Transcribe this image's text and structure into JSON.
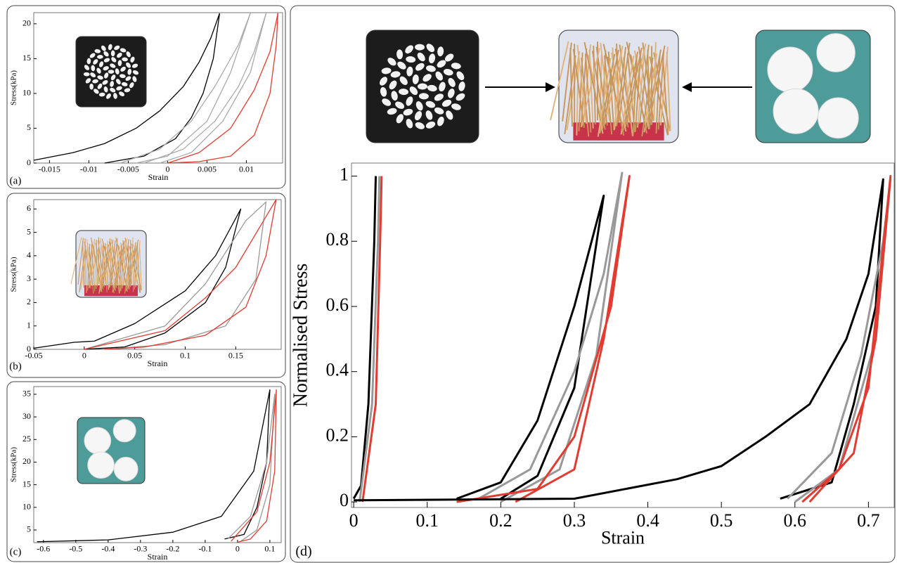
{
  "chart_data": [
    {
      "type": "line",
      "label": "(a)",
      "xlabel": "Strain",
      "ylabel": "Stress(kPa)",
      "xlim": [
        -0.017,
        0.0146
      ],
      "xticks": [
        -0.015,
        -0.01,
        -0.005,
        0,
        0.005,
        0.01
      ],
      "ylim": [
        0,
        21.6
      ],
      "yticks": [
        0,
        5,
        10,
        15,
        20
      ],
      "series": [
        {
          "color": "#000000",
          "x": [
            -0.017,
            -0.012,
            -0.008,
            -0.004,
            -0.001,
            0.002,
            0.004,
            0.0055,
            0.0066
          ],
          "values": [
            0.4,
            1.5,
            2.8,
            5,
            7.5,
            11,
            14.5,
            18,
            21.5
          ]
        },
        {
          "color": "#000000",
          "x": [
            -0.008,
            -0.003,
            0.001,
            0.003,
            0.0045,
            0.0058,
            0.0066
          ],
          "values": [
            0,
            1,
            3.5,
            6.5,
            10,
            15,
            21.5
          ]
        },
        {
          "color": "#aaaaaa",
          "x": [
            -0.006,
            -0.001,
            0.003,
            0.006,
            0.009,
            0.0105,
            0.008,
            0.005,
            0,
            -0.004
          ],
          "values": [
            0,
            2,
            6,
            11,
            17,
            21.5,
            13,
            6,
            1,
            0
          ]
        },
        {
          "color": "#aaaaaa",
          "x": [
            -0.003,
            0.002,
            0.006,
            0.009,
            0.011,
            0.0125,
            0.0105,
            0.007,
            0.003,
            -0.001
          ],
          "values": [
            0,
            2,
            6,
            11,
            16,
            21.5,
            13,
            6,
            1.5,
            0
          ]
        },
        {
          "color": "#e03c31",
          "x": [
            0,
            0.004,
            0.008,
            0.011,
            0.013,
            0.014,
            0.0138,
            0.013,
            0.011,
            0.008,
            0.004,
            0
          ],
          "values": [
            0,
            1.5,
            5,
            10.5,
            16,
            21.5,
            17,
            10,
            4,
            1,
            0.2,
            0
          ]
        }
      ]
    },
    {
      "type": "line",
      "label": "(b)",
      "xlabel": "Strain",
      "ylabel": "Stress(kPa)",
      "xlim": [
        -0.05,
        0.195
      ],
      "xticks": [
        -0.05,
        0,
        0.05,
        0.1,
        0.15
      ],
      "ylim": [
        0,
        6.4
      ],
      "yticks": [
        0,
        1,
        2,
        3,
        4,
        5,
        6
      ],
      "series": [
        {
          "color": "#000000",
          "x": [
            -0.05,
            -0.01,
            0.01,
            0.05,
            0.1,
            0.13,
            0.155,
            0.14,
            0.12,
            0.08,
            0.04,
            0
          ],
          "values": [
            0.05,
            0.3,
            0.35,
            1.1,
            2.5,
            4,
            6,
            3.5,
            2,
            0.7,
            0.1,
            0
          ]
        },
        {
          "color": "#999999",
          "x": [
            0,
            0.08,
            0.12,
            0.16,
            0.18,
            0.17,
            0.14,
            0.08,
            0.02
          ],
          "values": [
            0,
            1,
            2.8,
            5.5,
            6.3,
            3,
            1,
            0.2,
            0
          ]
        },
        {
          "color": "#e03c31",
          "x": [
            0,
            0.08,
            0.12,
            0.15,
            0.19,
            0.18,
            0.16,
            0.12,
            0.06,
            0.02
          ],
          "values": [
            0,
            0.8,
            2.2,
            3.5,
            6.4,
            4,
            1.8,
            0.6,
            0.1,
            0
          ]
        }
      ]
    },
    {
      "type": "line",
      "label": "(c)",
      "xlabel": "Strain",
      "ylabel": "Stress(kPa)",
      "xlim": [
        -0.63,
        0.135
      ],
      "xticks": [
        -0.6,
        -0.5,
        -0.4,
        -0.3,
        -0.2,
        -0.1,
        0,
        0.1
      ],
      "ylim": [
        2.2,
        36.7
      ],
      "yticks": [
        5,
        10,
        15,
        20,
        25,
        30,
        35
      ],
      "series": [
        {
          "color": "#000000",
          "x": [
            -0.62,
            -0.4,
            -0.2,
            -0.05,
            0.05,
            0.1,
            0.09,
            0.06,
            0.02,
            -0.04
          ],
          "values": [
            2.4,
            2.8,
            4.5,
            8,
            18,
            36,
            20,
            10,
            4,
            3
          ]
        },
        {
          "color": "#999999",
          "x": [
            -0.03,
            0.04,
            0.09,
            0.115,
            0.1,
            0.06,
            0.01
          ],
          "values": [
            3,
            8,
            20,
            35,
            15,
            5,
            2.5
          ]
        },
        {
          "color": "#e03c31",
          "x": [
            -0.02,
            0.06,
            0.1,
            0.12,
            0.115,
            0.09,
            0.04,
            0
          ],
          "values": [
            2.5,
            9,
            20,
            36,
            18,
            7,
            3,
            2.3
          ]
        }
      ]
    },
    {
      "type": "line",
      "label": "(d)",
      "xlabel": "Strain",
      "ylabel": "Normalised Stress",
      "xlim": [
        -0.003,
        0.735
      ],
      "xticks": [
        0,
        0.1,
        0.2,
        0.3,
        0.4,
        0.5,
        0.6,
        0.7
      ],
      "ylim": [
        -0.017,
        1.04
      ],
      "yticks": [
        0,
        0.2,
        0.4,
        0.6,
        0.8,
        1
      ],
      "series": [
        {
          "color": "#000000",
          "x": [
            0,
            0.01,
            0.02,
            0.028,
            0.03
          ],
          "values": [
            0.01,
            0.05,
            0.3,
            0.8,
            1
          ]
        },
        {
          "color": "#999999",
          "x": [
            0.008,
            0.025,
            0.033,
            0.035
          ],
          "values": [
            0,
            0.3,
            0.8,
            1
          ]
        },
        {
          "color": "#e03c31",
          "x": [
            0.012,
            0.03,
            0.036,
            0.038
          ],
          "values": [
            0,
            0.3,
            0.8,
            1
          ]
        },
        {
          "color": "#000000",
          "x": [
            0.14,
            0.2,
            0.25,
            0.3,
            0.34,
            0.3,
            0.25,
            0.2
          ],
          "values": [
            0.01,
            0.06,
            0.25,
            0.6,
            0.94,
            0.35,
            0.08,
            0.01
          ]
        },
        {
          "color": "#999999",
          "x": [
            0.17,
            0.24,
            0.3,
            0.34,
            0.365,
            0.33,
            0.28,
            0.2
          ],
          "values": [
            0.01,
            0.1,
            0.4,
            0.7,
            1.01,
            0.45,
            0.1,
            0
          ]
        },
        {
          "color": "#e03c31",
          "x": [
            0.14,
            0.25,
            0.3,
            0.35,
            0.375,
            0.34,
            0.3,
            0.22
          ],
          "values": [
            0,
            0.04,
            0.2,
            0.6,
            1,
            0.5,
            0.1,
            0
          ]
        },
        {
          "color": "#000000",
          "x": [
            0,
            0.3,
            0.44,
            0.5,
            0.56,
            0.62,
            0.67,
            0.7,
            0.72,
            0.71,
            0.68,
            0.65,
            0.58
          ],
          "values": [
            0.005,
            0.01,
            0.07,
            0.11,
            0.2,
            0.3,
            0.5,
            0.7,
            0.99,
            0.6,
            0.3,
            0.06,
            0.01
          ]
        },
        {
          "color": "#999999",
          "x": [
            0.59,
            0.65,
            0.69,
            0.72,
            0.73,
            0.71,
            0.66,
            0.6
          ],
          "values": [
            0.01,
            0.15,
            0.45,
            0.8,
            0.99,
            0.5,
            0.1,
            0
          ]
        },
        {
          "color": "#e03c31",
          "x": [
            0.61,
            0.66,
            0.7,
            0.73,
            0.71,
            0.68,
            0.62
          ],
          "values": [
            0,
            0.1,
            0.35,
            1,
            0.5,
            0.15,
            0
          ]
        }
      ]
    }
  ]
}
